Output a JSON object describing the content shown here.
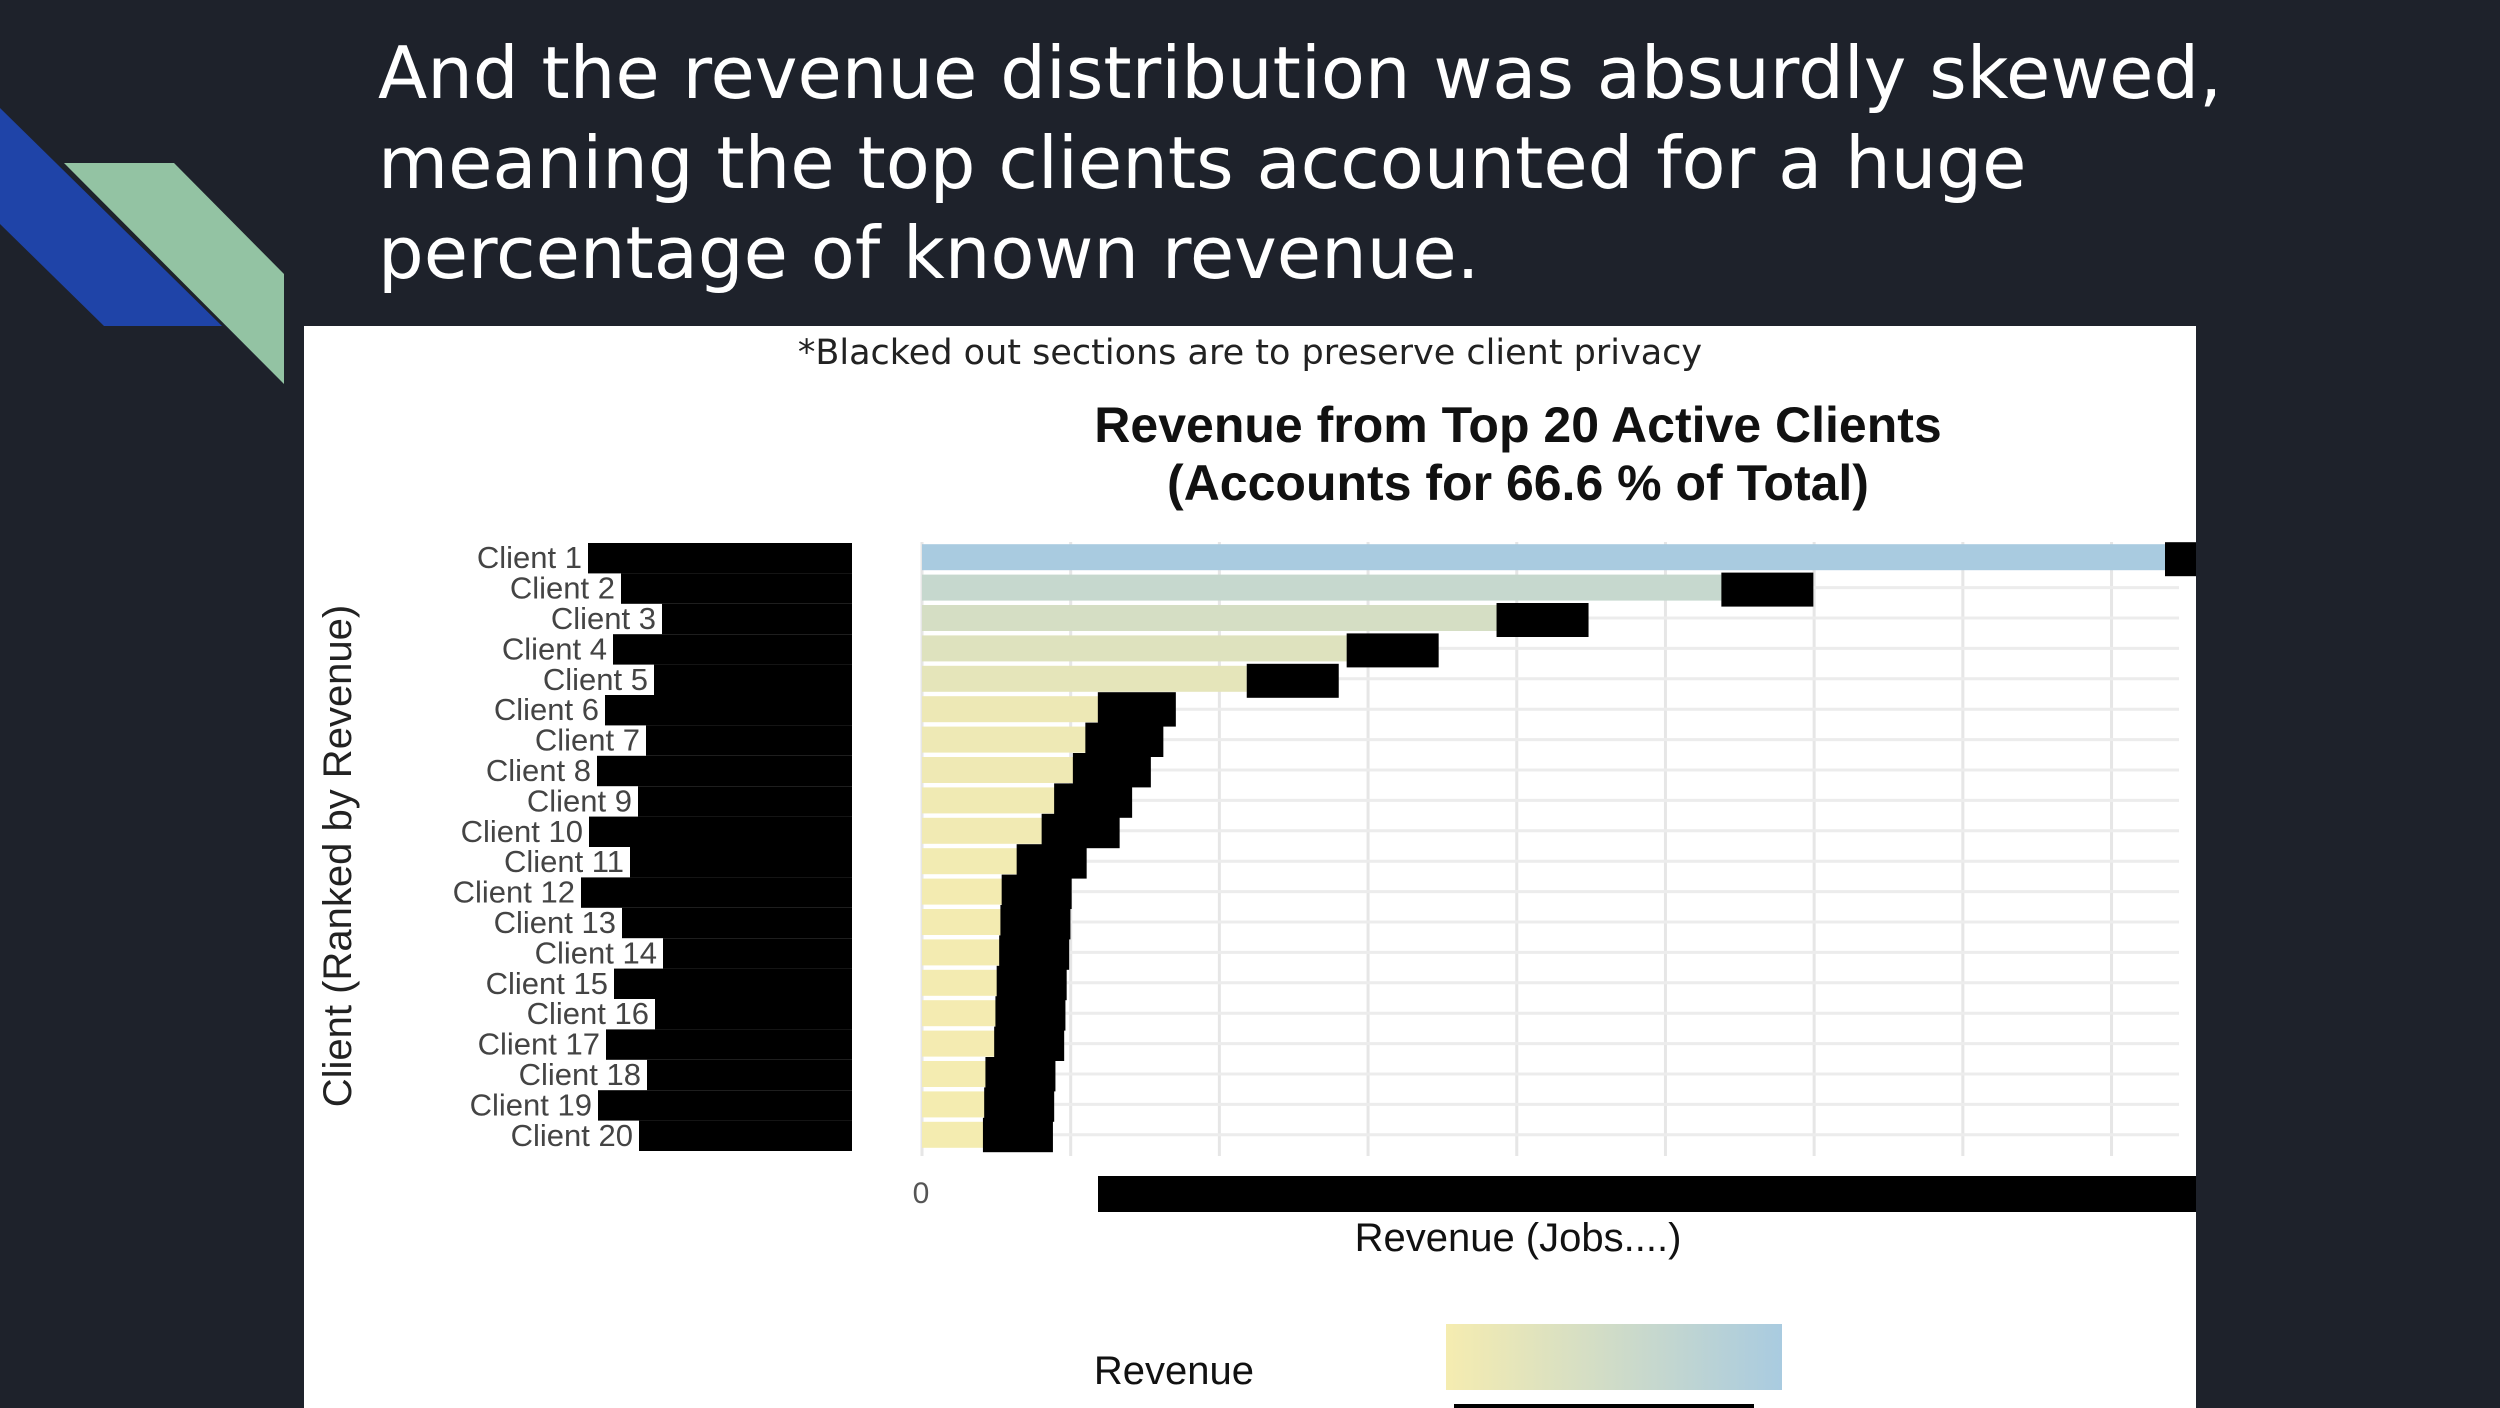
{
  "slide": {
    "title": "And the revenue distribution was absurdly skewed, meaning the top clients accounted for a huge percentage of known revenue.",
    "colors": {
      "background": "#1e222b",
      "accent_blue": "#1f44a8",
      "accent_green": "#93c3a3"
    }
  },
  "note": "*Blacked out sections are to preserve client privacy",
  "chart_data": {
    "type": "bar",
    "orientation": "horizontal",
    "title": "Revenue from Top 20 Active Clients",
    "subtitle": "(Accounts for 66.6 % of Total)",
    "ylabel": "Client (Ranked by Revenue)",
    "xlabel": "Revenue (Jobs....)",
    "x_tick_labels": [
      "0"
    ],
    "grid": true,
    "categories": [
      "Client 1",
      "Client 2",
      "Client 3",
      "Client 4",
      "Client 5",
      "Client 6",
      "Client 7",
      "Client 8",
      "Client 9",
      "Client 10",
      "Client 11",
      "Client 12",
      "Client 13",
      "Client 14",
      "Client 15",
      "Client 16",
      "Client 17",
      "Client 18",
      "Client 19",
      "Client 20"
    ],
    "values": [
      100,
      64,
      46,
      34,
      26,
      16,
      15,
      14,
      12.5,
      11.5,
      9.5,
      8.3,
      8.2,
      8.1,
      7.9,
      7.8,
      7.7,
      7.0,
      6.9,
      6.8
    ],
    "legend": {
      "title": "Revenue",
      "placement": "bottom",
      "color_low": "#f5ecb0",
      "color_high": "#a9cbe0"
    },
    "redacted": true
  }
}
